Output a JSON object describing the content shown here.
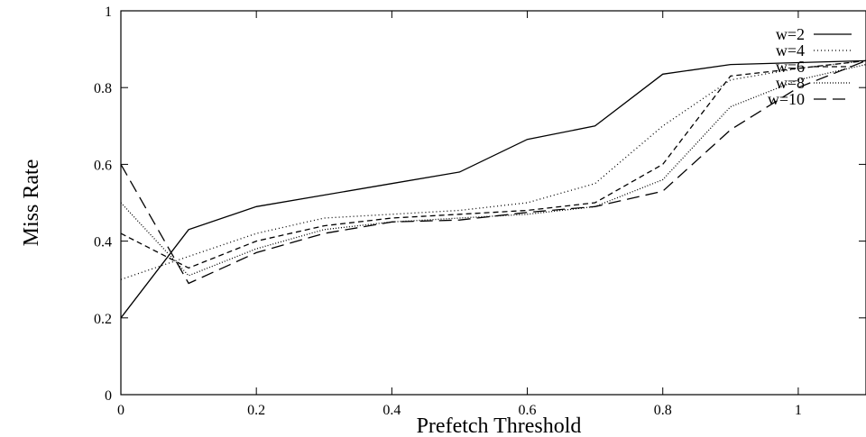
{
  "chart_data": {
    "type": "line",
    "title": "",
    "xlabel": "Prefetch Threshold",
    "ylabel": "Miss Rate",
    "xlim": [
      0,
      1.1
    ],
    "ylim": [
      0,
      1
    ],
    "grid": false,
    "legend_position": "top-right",
    "x_ticks": [
      {
        "value": 0,
        "label": "0"
      },
      {
        "value": 0.2,
        "label": "0.2"
      },
      {
        "value": 0.4,
        "label": "0.4"
      },
      {
        "value": 0.6,
        "label": "0.6"
      },
      {
        "value": 0.8,
        "label": "0.8"
      },
      {
        "value": 1,
        "label": "1"
      }
    ],
    "y_ticks": [
      {
        "value": 0,
        "label": "0"
      },
      {
        "value": 0.2,
        "label": "0.2"
      },
      {
        "value": 0.4,
        "label": "0.4"
      },
      {
        "value": 0.6,
        "label": "0.6"
      },
      {
        "value": 0.8,
        "label": "0.8"
      },
      {
        "value": 1,
        "label": "1"
      }
    ],
    "x": [
      0,
      0.1,
      0.2,
      0.3,
      0.4,
      0.5,
      0.6,
      0.7,
      0.8,
      0.9,
      1.0,
      1.1
    ],
    "series": [
      {
        "name": "w=2",
        "line_style": "solid",
        "values": [
          0.2,
          0.43,
          0.49,
          0.52,
          0.55,
          0.58,
          0.665,
          0.7,
          0.835,
          0.86,
          0.865,
          0.87
        ]
      },
      {
        "name": "w=4",
        "line_style": "dotted",
        "values": [
          0.3,
          0.36,
          0.42,
          0.46,
          0.47,
          0.48,
          0.5,
          0.55,
          0.7,
          0.82,
          0.85,
          0.87
        ]
      },
      {
        "name": "w=6",
        "line_style": "dashed",
        "values": [
          0.42,
          0.33,
          0.4,
          0.44,
          0.46,
          0.47,
          0.48,
          0.5,
          0.6,
          0.83,
          0.85,
          0.87
        ]
      },
      {
        "name": "w=8",
        "line_style": "dense-dotted",
        "values": [
          0.5,
          0.31,
          0.38,
          0.43,
          0.45,
          0.46,
          0.47,
          0.49,
          0.56,
          0.75,
          0.82,
          0.86
        ]
      },
      {
        "name": "w=10",
        "line_style": "long-dashed",
        "values": [
          0.6,
          0.29,
          0.37,
          0.42,
          0.45,
          0.455,
          0.475,
          0.49,
          0.53,
          0.69,
          0.8,
          0.87
        ]
      }
    ]
  }
}
